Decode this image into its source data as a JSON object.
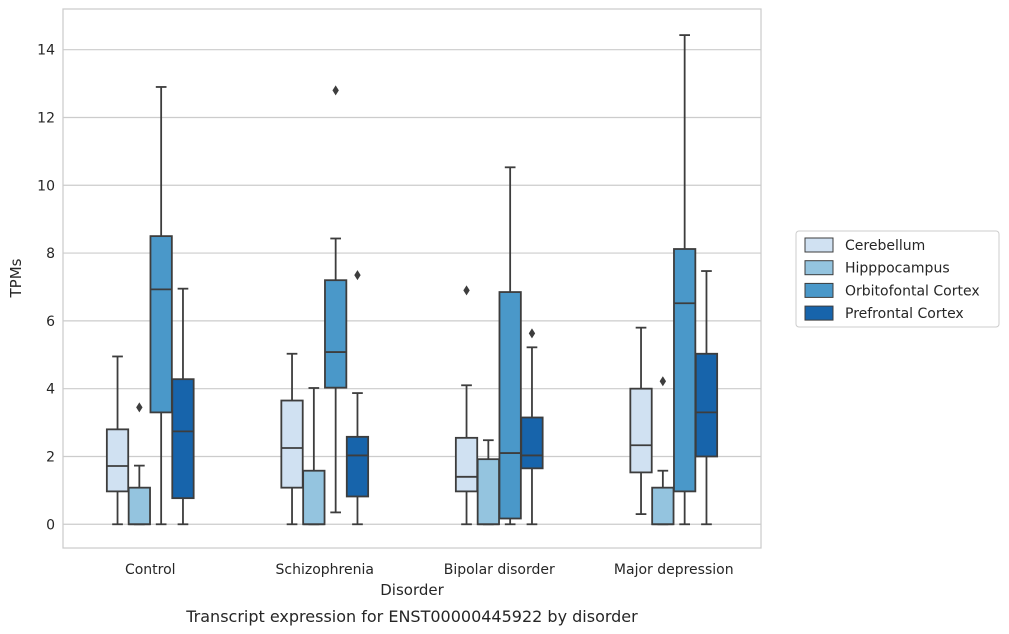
{
  "chart_data": {
    "type": "box",
    "caption": "Transcript expression for ENST00000445922 by disorder",
    "xlabel": "Disorder",
    "ylabel": "TPMs",
    "ylim": [
      -0.7,
      15.2
    ],
    "yticks": [
      0,
      2,
      4,
      6,
      8,
      10,
      12,
      14
    ],
    "grid": "horizontal",
    "legend_position": "right",
    "categories": [
      "Control",
      "Schizophrenia",
      "Bipolar disorder",
      "Major depression"
    ],
    "series": [
      {
        "name": "Cerebellum",
        "color": "#d0e1f2",
        "boxes": [
          {
            "whislo": 0,
            "q1": 0.97,
            "med": 1.72,
            "q3": 2.8,
            "whishi": 4.95,
            "fliers": []
          },
          {
            "whislo": 0,
            "q1": 1.08,
            "med": 2.25,
            "q3": 3.65,
            "whishi": 5.03,
            "fliers": []
          },
          {
            "whislo": 0,
            "q1": 0.97,
            "med": 1.4,
            "q3": 2.55,
            "whishi": 4.1,
            "fliers": [
              6.9
            ]
          },
          {
            "whislo": 0.3,
            "q1": 1.53,
            "med": 2.33,
            "q3": 4.0,
            "whishi": 5.8,
            "fliers": []
          }
        ]
      },
      {
        "name": "Hipppocampus",
        "color": "#94c4df",
        "boxes": [
          {
            "whislo": 0,
            "q1": 0,
            "med": 0,
            "q3": 1.08,
            "whishi": 1.73,
            "fliers": [
              3.45
            ]
          },
          {
            "whislo": 0,
            "q1": 0,
            "med": 0,
            "q3": 1.58,
            "whishi": 4.02,
            "fliers": []
          },
          {
            "whislo": 0,
            "q1": 0,
            "med": 0,
            "q3": 1.92,
            "whishi": 2.48,
            "fliers": []
          },
          {
            "whislo": 0,
            "q1": 0,
            "med": 0,
            "q3": 1.08,
            "whishi": 1.58,
            "fliers": [
              4.22
            ]
          }
        ]
      },
      {
        "name": "Orbitofontal Cortex",
        "color": "#4a98c9",
        "boxes": [
          {
            "whislo": 0,
            "q1": 3.3,
            "med": 6.93,
            "q3": 8.5,
            "whishi": 12.9,
            "fliers": []
          },
          {
            "whislo": 0.35,
            "q1": 4.03,
            "med": 5.08,
            "q3": 7.2,
            "whishi": 8.43,
            "fliers": [
              12.8
            ]
          },
          {
            "whislo": 0,
            "q1": 0.17,
            "med": 2.1,
            "q3": 6.85,
            "whishi": 10.53,
            "fliers": []
          },
          {
            "whislo": 0,
            "q1": 0.97,
            "med": 6.52,
            "q3": 8.12,
            "whishi": 14.43,
            "fliers": []
          }
        ]
      },
      {
        "name": "Prefrontal Cortex",
        "color": "#1764ab",
        "boxes": [
          {
            "whislo": 0,
            "q1": 0.77,
            "med": 2.74,
            "q3": 4.28,
            "whishi": 6.95,
            "fliers": []
          },
          {
            "whislo": 0,
            "q1": 0.82,
            "med": 2.03,
            "q3": 2.58,
            "whishi": 3.87,
            "fliers": [
              7.35
            ]
          },
          {
            "whislo": 0,
            "q1": 1.65,
            "med": 2.03,
            "q3": 3.15,
            "whishi": 5.22,
            "fliers": [
              5.63
            ]
          },
          {
            "whislo": 0,
            "q1": 2.0,
            "med": 3.3,
            "q3": 5.03,
            "whishi": 7.47,
            "fliers": []
          }
        ]
      }
    ]
  }
}
